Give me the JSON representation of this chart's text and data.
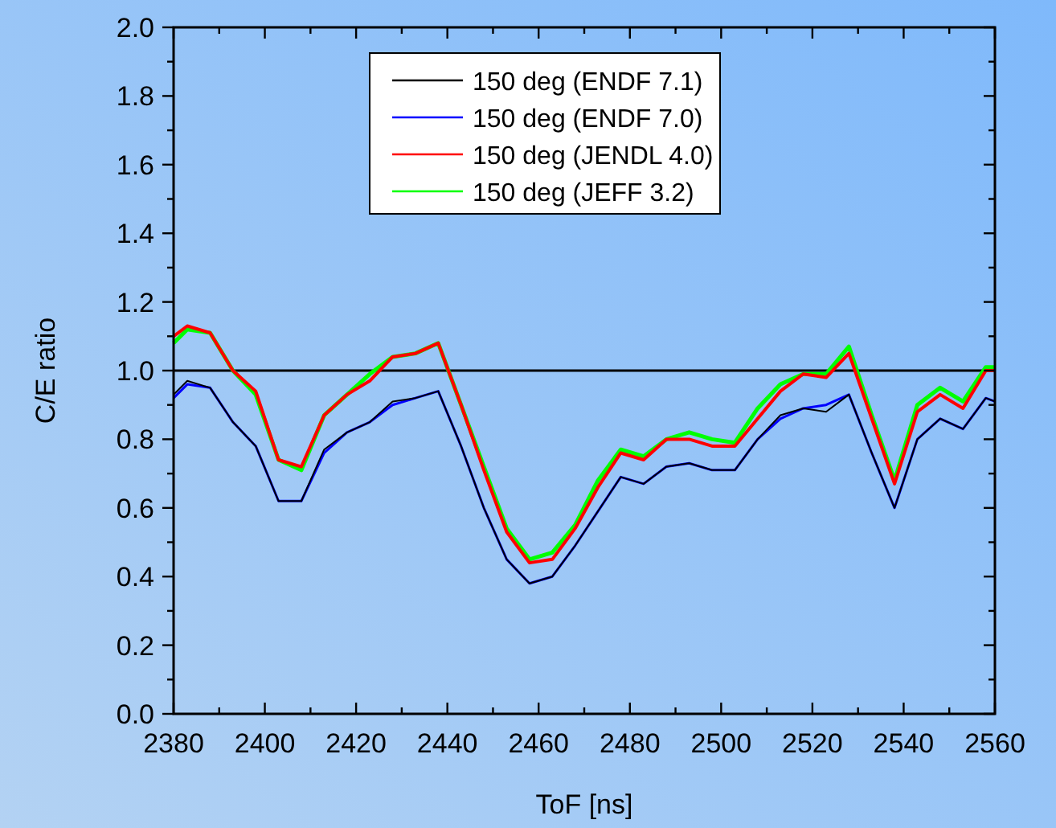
{
  "chart_data": {
    "type": "line",
    "xlabel": "ToF [ns]",
    "ylabel": "C/E ratio",
    "x": [
      2380,
      2383,
      2388,
      2393,
      2398,
      2403,
      2408,
      2413,
      2418,
      2423,
      2428,
      2433,
      2438,
      2443,
      2448,
      2453,
      2458,
      2463,
      2468,
      2473,
      2478,
      2483,
      2488,
      2493,
      2498,
      2503,
      2508,
      2513,
      2518,
      2523,
      2528,
      2533,
      2538,
      2543,
      2548,
      2553,
      2558,
      2560
    ],
    "series": [
      {
        "name": "150 deg (ENDF 7.1)",
        "color": "#000000",
        "values": [
          0.93,
          0.97,
          0.95,
          0.85,
          0.78,
          0.62,
          0.62,
          0.77,
          0.82,
          0.85,
          0.91,
          0.92,
          0.94,
          0.78,
          0.6,
          0.45,
          0.38,
          0.4,
          0.49,
          0.59,
          0.69,
          0.67,
          0.72,
          0.73,
          0.71,
          0.71,
          0.8,
          0.87,
          0.89,
          0.88,
          0.93,
          0.76,
          0.6,
          0.8,
          0.86,
          0.83,
          0.92,
          0.91
        ]
      },
      {
        "name": "150 deg (ENDF 7.0)",
        "color": "#0000ff",
        "values": [
          0.92,
          0.96,
          0.95,
          0.85,
          0.78,
          0.62,
          0.62,
          0.76,
          0.82,
          0.85,
          0.9,
          0.92,
          0.94,
          0.78,
          0.6,
          0.45,
          0.38,
          0.4,
          0.49,
          0.59,
          0.69,
          0.67,
          0.72,
          0.73,
          0.71,
          0.71,
          0.8,
          0.86,
          0.89,
          0.9,
          0.93,
          0.76,
          0.6,
          0.8,
          0.86,
          0.83,
          0.92,
          0.91
        ]
      },
      {
        "name": "150 deg (JENDL 4.0)",
        "color": "#ff0000",
        "values": [
          1.1,
          1.13,
          1.11,
          1.0,
          0.94,
          0.74,
          0.72,
          0.87,
          0.93,
          0.97,
          1.04,
          1.05,
          1.08,
          0.9,
          0.71,
          0.53,
          0.44,
          0.45,
          0.54,
          0.66,
          0.76,
          0.74,
          0.8,
          0.8,
          0.78,
          0.78,
          0.86,
          0.94,
          0.99,
          0.98,
          1.05,
          0.86,
          0.67,
          0.88,
          0.93,
          0.89,
          1.0,
          1.0
        ]
      },
      {
        "name": "150 deg (JEFF 3.2)",
        "color": "#00ff00",
        "values": [
          1.08,
          1.12,
          1.11,
          1.0,
          0.93,
          0.74,
          0.71,
          0.87,
          0.93,
          0.99,
          1.04,
          1.05,
          1.08,
          0.9,
          0.72,
          0.54,
          0.45,
          0.47,
          0.55,
          0.68,
          0.77,
          0.75,
          0.8,
          0.82,
          0.8,
          0.79,
          0.89,
          0.96,
          0.99,
          0.99,
          1.07,
          0.87,
          0.68,
          0.9,
          0.95,
          0.91,
          1.01,
          1.01
        ]
      }
    ],
    "xlim": [
      2380,
      2560
    ],
    "xticks": [
      2380,
      {
        "value": 2390,
        "label": null
      },
      2400,
      {
        "value": 2410,
        "label": null
      },
      2420,
      {
        "value": 2430,
        "label": null
      },
      2440,
      {
        "value": 2450,
        "label": null
      },
      2460,
      {
        "value": 2470,
        "label": null
      },
      2480,
      {
        "value": 2490,
        "label": null
      },
      2500,
      {
        "value": 2510,
        "label": null
      },
      2520,
      {
        "value": 2530,
        "label": null
      },
      2540,
      {
        "value": 2550,
        "label": null
      },
      2560
    ],
    "ylim": [
      0,
      2
    ],
    "yticks": [
      {
        "value": 0,
        "label": "0.0"
      },
      {
        "value": 0.1,
        "label": null
      },
      {
        "value": 0.2,
        "label": "0.2"
      },
      {
        "value": 0.3,
        "label": null
      },
      {
        "value": 0.4,
        "label": "0.4"
      },
      {
        "value": 0.5,
        "label": null
      },
      {
        "value": 0.6,
        "label": "0.6"
      },
      {
        "value": 0.7,
        "label": null
      },
      {
        "value": 0.8,
        "label": "0.8"
      },
      {
        "value": 0.9,
        "label": null
      },
      {
        "value": 1,
        "label": "1.0"
      },
      {
        "value": 1.1,
        "label": null
      },
      {
        "value": 1.2,
        "label": "1.2"
      },
      {
        "value": 1.3,
        "label": null
      },
      {
        "value": 1.4,
        "label": "1.4"
      },
      {
        "value": 1.5,
        "label": null
      },
      {
        "value": 1.6,
        "label": "1.6"
      },
      {
        "value": 1.7,
        "label": null
      },
      {
        "value": 1.8,
        "label": "1.8"
      },
      {
        "value": 1.9,
        "label": null
      },
      {
        "value": 2,
        "label": "2.0"
      }
    ],
    "ref_lines": [
      {
        "axis": "y",
        "value": 1,
        "color": "#000000"
      }
    ],
    "grid": false,
    "legend": "top",
    "marker": "none",
    "line_style": "solid"
  }
}
